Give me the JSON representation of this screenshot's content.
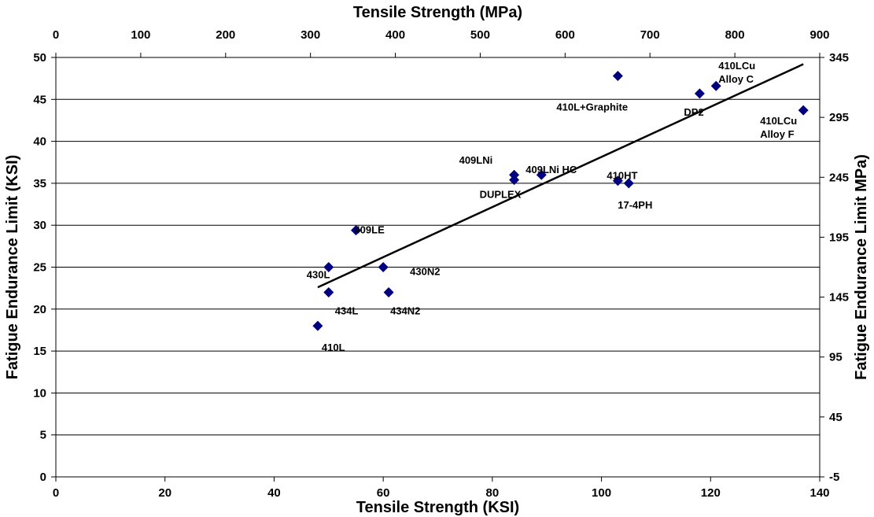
{
  "chart_data": {
    "type": "scatter",
    "title": "",
    "xlabel": "Tensile Strength (KSI)",
    "ylabel": "Fatigue Endurance Limit (KSI)",
    "x2label": "Tensile Strength (MPa)",
    "y2label": "Fatigue Endurance Limit MPa)",
    "xlim": [
      0,
      140
    ],
    "ylim": [
      0,
      50
    ],
    "x2lim": [
      0,
      900
    ],
    "y2lim": [
      -5,
      345
    ],
    "x_ticks": [
      "0",
      "20",
      "40",
      "60",
      "80",
      "100",
      "120",
      "140"
    ],
    "y_ticks": [
      "0",
      "5",
      "10",
      "15",
      "20",
      "25",
      "30",
      "35",
      "40",
      "45",
      "50"
    ],
    "x2_ticks": [
      "0",
      "100",
      "200",
      "300",
      "400",
      "500",
      "600",
      "700",
      "800",
      "900"
    ],
    "y2_ticks": [
      "-5",
      "45",
      "95",
      "145",
      "195",
      "245",
      "295",
      "345"
    ],
    "grid": "horizontal",
    "marker_color": "#000080",
    "trendline": {
      "x": [
        48,
        137
      ],
      "y": [
        22.6,
        49.2
      ]
    },
    "points": [
      {
        "label": "410L",
        "x": 48,
        "y": 18
      },
      {
        "label": "430L",
        "x": 50,
        "y": 25
      },
      {
        "label": "434L",
        "x": 50,
        "y": 22
      },
      {
        "label": "409LE",
        "x": 55,
        "y": 29.4
      },
      {
        "label": "430N2",
        "x": 60,
        "y": 25
      },
      {
        "label": "434N2",
        "x": 61,
        "y": 22
      },
      {
        "label": "409LNi",
        "x": 84,
        "y": 36
      },
      {
        "label": "DUPLEX",
        "x": 84,
        "y": 35.4
      },
      {
        "label": "409LNi HC",
        "x": 89,
        "y": 36
      },
      {
        "label": "410L+Graphite",
        "x": 103,
        "y": 47.8
      },
      {
        "label": "410HT",
        "x": 103,
        "y": 35.3
      },
      {
        "label": "17-4PH",
        "x": 105,
        "y": 35
      },
      {
        "label": "DP2",
        "x": 118,
        "y": 45.7
      },
      {
        "label": "410LCu Alloy C",
        "x": 121,
        "y": 46.6
      },
      {
        "label": "410LCu Alloy F",
        "x": 137,
        "y": 43.7
      }
    ]
  }
}
